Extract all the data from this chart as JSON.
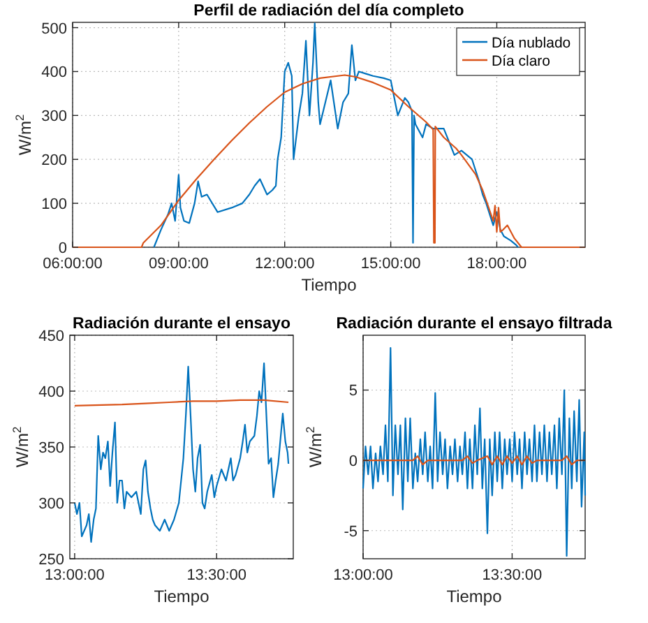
{
  "chart_data": [
    {
      "type": "line",
      "title": "Perfil de radiación del día completo",
      "xlabel": "Tiempo",
      "ylabel": "W/m$^{2}$",
      "xlim": [
        6,
        20.5
      ],
      "ylim": [
        0,
        512
      ],
      "xticks": [
        {
          "value": 6,
          "label": "06:00:00"
        },
        {
          "value": 9,
          "label": "09:00:00"
        },
        {
          "value": 12,
          "label": "12:00:00"
        },
        {
          "value": 15,
          "label": "15:00:00"
        },
        {
          "value": 18,
          "label": "18:00:00"
        }
      ],
      "yticks": [
        0,
        100,
        200,
        300,
        400,
        500
      ],
      "grid": true,
      "legend": "top right",
      "series": [
        {
          "name": "Día nublado",
          "color": "#0072bd",
          "x": [
            8.3,
            8.5,
            8.7,
            8.8,
            8.9,
            9.0,
            9.05,
            9.15,
            9.3,
            9.45,
            9.55,
            9.65,
            9.8,
            10.1,
            10.5,
            10.8,
            11.0,
            11.15,
            11.3,
            11.5,
            11.65,
            11.75,
            11.8,
            11.9,
            12.0,
            12.1,
            12.2,
            12.25,
            12.4,
            12.5,
            12.6,
            12.7,
            12.8,
            12.85,
            12.95,
            13.0,
            13.15,
            13.3,
            13.5,
            13.65,
            13.8,
            13.9,
            14.0,
            14.1,
            14.3,
            14.5,
            14.8,
            15.0,
            15.2,
            15.4,
            15.5,
            15.6,
            15.63,
            15.66,
            15.7,
            15.9,
            16.0,
            16.2,
            16.5,
            16.8,
            17.0,
            17.3,
            17.5,
            17.6,
            17.7,
            17.9,
            18.0,
            18.1,
            18.2,
            18.4,
            18.55,
            18.6
          ],
          "values": [
            0,
            40,
            75,
            100,
            60,
            165,
            90,
            60,
            55,
            100,
            150,
            115,
            120,
            80,
            90,
            100,
            120,
            140,
            155,
            120,
            130,
            140,
            200,
            250,
            400,
            420,
            390,
            200,
            300,
            350,
            470,
            300,
            420,
            510,
            330,
            280,
            330,
            380,
            270,
            330,
            350,
            460,
            380,
            400,
            395,
            390,
            385,
            380,
            300,
            340,
            330,
            310,
            10,
            300,
            280,
            250,
            280,
            270,
            270,
            210,
            220,
            200,
            150,
            120,
            100,
            50,
            80,
            40,
            25,
            15,
            5,
            0
          ]
        },
        {
          "name": "Día claro",
          "color": "#d95319",
          "x": [
            6,
            7.95,
            8.0,
            8.5,
            9.0,
            9.5,
            10.0,
            10.5,
            11.0,
            11.5,
            12.0,
            12.5,
            13.0,
            13.7,
            14.0,
            14.5,
            15.0,
            15.5,
            16.0,
            16.2,
            16.22,
            16.25,
            16.26,
            16.5,
            16.85,
            17.0,
            17.4,
            17.6,
            17.75,
            17.9,
            17.95,
            18.0,
            18.05,
            18.1,
            18.18,
            18.3,
            18.5,
            18.7,
            20.5
          ],
          "values": [
            0,
            0,
            10,
            50,
            107,
            155,
            200,
            243,
            283,
            320,
            353,
            372,
            385,
            392,
            388,
            375,
            358,
            320,
            285,
            268,
            10,
            10,
            275,
            250,
            225,
            210,
            166,
            130,
            95,
            60,
            95,
            35,
            90,
            35,
            40,
            50,
            20,
            0,
            0
          ]
        }
      ]
    },
    {
      "type": "line",
      "title": "Radiación durante el ensayo",
      "xlabel": "Tiempo",
      "ylabel": "W/m$^{2}$",
      "xlim": [
        12.983,
        13.77
      ],
      "ylim": [
        250,
        450
      ],
      "xticks": [
        {
          "value": 13,
          "label": "13:00:00"
        },
        {
          "value": 13.5,
          "label": "13:30:00"
        }
      ],
      "yticks": [
        250,
        300,
        350,
        400,
        450
      ],
      "grid": true,
      "series": [
        {
          "color": "#0072bd",
          "x": [
            13.0,
            13.008,
            13.017,
            13.025,
            13.042,
            13.05,
            13.058,
            13.067,
            13.075,
            13.083,
            13.092,
            13.1,
            13.108,
            13.117,
            13.125,
            13.133,
            13.142,
            13.15,
            13.158,
            13.167,
            13.175,
            13.183,
            13.2,
            13.217,
            13.233,
            13.242,
            13.25,
            13.258,
            13.267,
            13.275,
            13.283,
            13.3,
            13.317,
            13.333,
            13.35,
            13.367,
            13.383,
            13.392,
            13.4,
            13.408,
            13.417,
            13.425,
            13.433,
            13.442,
            13.45,
            13.458,
            13.467,
            13.483,
            13.492,
            13.5,
            13.517,
            13.533,
            13.55,
            13.558,
            13.567,
            13.583,
            13.592,
            13.6,
            13.608,
            13.617,
            13.633,
            13.642,
            13.65,
            13.658,
            13.667,
            13.675,
            13.683,
            13.692,
            13.7,
            13.708,
            13.717,
            13.733,
            13.742,
            13.75,
            13.753
          ],
          "values": [
            300,
            290,
            300,
            270,
            280,
            290,
            265,
            285,
            295,
            360,
            330,
            345,
            340,
            355,
            315,
            345,
            372,
            300,
            320,
            320,
            295,
            310,
            305,
            310,
            290,
            330,
            338,
            310,
            295,
            285,
            280,
            275,
            285,
            275,
            285,
            300,
            340,
            380,
            422,
            380,
            330,
            310,
            340,
            352,
            300,
            295,
            310,
            325,
            305,
            315,
            330,
            320,
            340,
            320,
            325,
            340,
            355,
            370,
            345,
            355,
            360,
            378,
            400,
            390,
            425,
            380,
            335,
            340,
            305,
            320,
            335,
            380,
            355,
            345,
            335
          ]
        },
        {
          "color": "#d95319",
          "x": [
            13.0,
            13.167,
            13.25,
            13.333,
            13.417,
            13.5,
            13.583,
            13.667,
            13.753
          ],
          "values": [
            387,
            388,
            389,
            390,
            391,
            391,
            392,
            392,
            390
          ]
        }
      ]
    },
    {
      "type": "line",
      "title": "Radiación durante el ensayo filtrada",
      "xlabel": "Tiempo",
      "ylabel": "W/m$^{2}$",
      "xlim": [
        13,
        13.745
      ],
      "ylim": [
        -7,
        8.9
      ],
      "xticks": [
        {
          "value": 13,
          "label": "13:00:00"
        },
        {
          "value": 13.5,
          "label": "13:30:00"
        }
      ],
      "yticks": [
        -5,
        0,
        5
      ],
      "grid": true,
      "series": [
        {
          "color": "#0072bd",
          "x": [
            13.0,
            13.008,
            13.017,
            13.025,
            13.033,
            13.042,
            13.05,
            13.058,
            13.067,
            13.075,
            13.083,
            13.092,
            13.1,
            13.108,
            13.117,
            13.125,
            13.133,
            13.142,
            13.15,
            13.158,
            13.167,
            13.175,
            13.183,
            13.192,
            13.2,
            13.208,
            13.217,
            13.225,
            13.233,
            13.242,
            13.25,
            13.258,
            13.267,
            13.275,
            13.283,
            13.292,
            13.3,
            13.308,
            13.317,
            13.325,
            13.333,
            13.342,
            13.35,
            13.358,
            13.367,
            13.375,
            13.383,
            13.392,
            13.4,
            13.408,
            13.417,
            13.425,
            13.433,
            13.442,
            13.45,
            13.458,
            13.467,
            13.475,
            13.483,
            13.492,
            13.5,
            13.508,
            13.517,
            13.525,
            13.533,
            13.542,
            13.55,
            13.558,
            13.567,
            13.575,
            13.583,
            13.592,
            13.6,
            13.608,
            13.617,
            13.625,
            13.633,
            13.642,
            13.65,
            13.658,
            13.667,
            13.675,
            13.683,
            13.692,
            13.7,
            13.708,
            13.717,
            13.725,
            13.733,
            13.742,
            13.745
          ],
          "values": [
            -2,
            1,
            -1,
            1,
            -2,
            0.5,
            -1.5,
            1,
            -1,
            2.5,
            -1.5,
            8,
            -2.5,
            2.5,
            -1,
            2.5,
            -3.5,
            3,
            -1.5,
            3,
            -2,
            0.5,
            -1.5,
            1.5,
            -1,
            2,
            -1.5,
            1,
            -2,
            4.8,
            -1.5,
            2,
            -1,
            1.5,
            -2,
            1,
            -1,
            1.5,
            -1.5,
            1,
            -1,
            2,
            -2,
            1.5,
            -2,
            2.5,
            -1,
            3.7,
            -2,
            1.5,
            -5.2,
            1.5,
            -2.5,
            2,
            -1.5,
            2,
            -2,
            1.5,
            -1,
            1.5,
            -1.5,
            2,
            -1,
            1.5,
            -2,
            2,
            -1,
            1.5,
            -1.5,
            2.5,
            -1.5,
            2,
            -1,
            2.5,
            -1.5,
            2,
            -1,
            2.5,
            -2,
            3,
            -1,
            5,
            -6.8,
            3,
            -2,
            3.5,
            -1.5,
            4.3,
            -3.3,
            2,
            -2.5
          ]
        },
        {
          "color": "#d95319",
          "x": [
            13.0,
            13.167,
            13.183,
            13.2,
            13.217,
            13.333,
            13.35,
            13.367,
            13.383,
            13.417,
            13.433,
            13.45,
            13.467,
            13.483,
            13.5,
            13.517,
            13.533,
            13.55,
            13.567,
            13.583,
            13.667,
            13.683,
            13.7,
            13.717,
            13.745
          ],
          "values": [
            0,
            0,
            0.3,
            -0.3,
            0,
            0,
            0.3,
            -0.2,
            0,
            0.3,
            -0.3,
            0.3,
            -0.3,
            0.3,
            -0.2,
            0.3,
            -0.3,
            0.3,
            -0.2,
            0,
            0,
            0.3,
            -0.3,
            0,
            0
          ]
        }
      ]
    }
  ]
}
